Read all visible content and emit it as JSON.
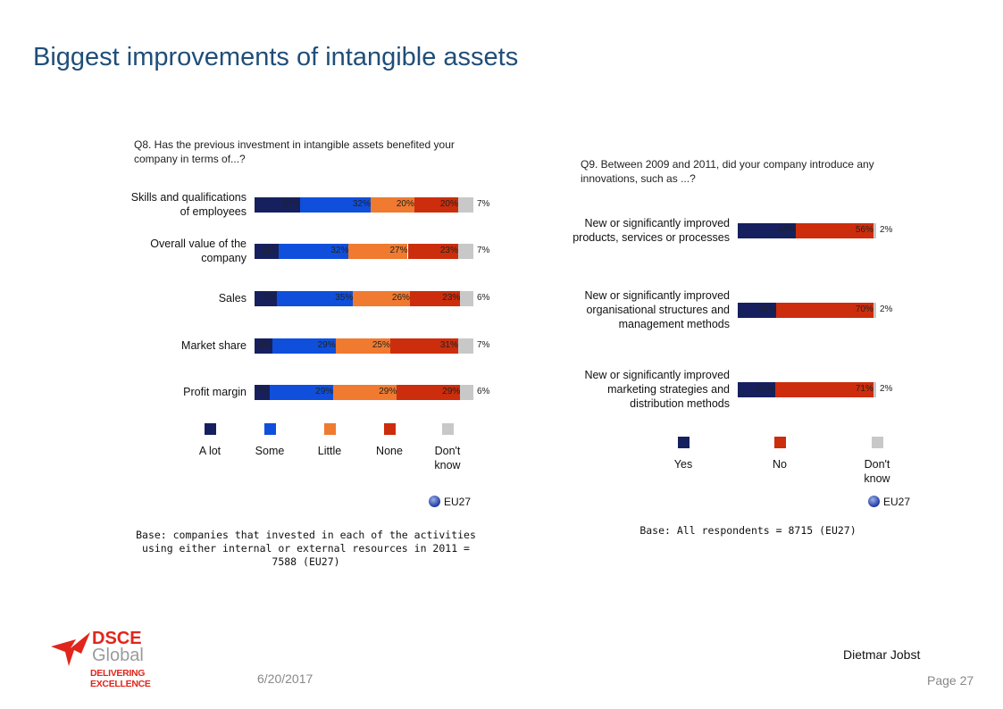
{
  "title": "Biggest improvements of intangible assets",
  "chart_data": [
    {
      "type": "bar",
      "stacked": true,
      "orientation": "horizontal",
      "title": "Q8. Has the previous investment in intangible assets benefited your company in terms of...?",
      "categories": [
        "Skills and qualifications of employees",
        "Overall value of the company",
        "Sales",
        "Market share",
        "Profit margin"
      ],
      "series": [
        {
          "name": "A lot",
          "color": "#16205e",
          "values": [
            21,
            11,
            10,
            8,
            7
          ]
        },
        {
          "name": "Some",
          "color": "#0f4fdc",
          "values": [
            32,
            32,
            35,
            29,
            29
          ]
        },
        {
          "name": "Little",
          "color": "#ef7a30",
          "values": [
            20,
            27,
            26,
            25,
            29
          ]
        },
        {
          "name": "None",
          "color": "#cc2d0c",
          "values": [
            20,
            23,
            23,
            31,
            29
          ]
        },
        {
          "name": "Don't know",
          "color": "#c8c8c8",
          "values": [
            7,
            7,
            6,
            7,
            6
          ]
        }
      ],
      "value_suffix": "%",
      "region_label": "EU27",
      "base_note": "Base: companies that invested in each of the activities using either internal or external resources in 2011 = 7588 (EU27)"
    },
    {
      "type": "bar",
      "stacked": true,
      "orientation": "horizontal",
      "title": "Q9. Between 2009 and 2011, did your company introduce any innovations, such as ...?",
      "categories": [
        "New or significantly improved products, services or processes",
        "New or significantly improved organisational structures and management methods",
        "New or significantly improved marketing strategies and distribution methods"
      ],
      "series": [
        {
          "name": "Yes",
          "color": "#16205e",
          "values": [
            42,
            28,
            27
          ]
        },
        {
          "name": "No",
          "color": "#cc2d0c",
          "values": [
            56,
            70,
            71
          ]
        },
        {
          "name": "Don't know",
          "color": "#c8c8c8",
          "values": [
            2,
            2,
            2
          ]
        }
      ],
      "value_suffix": "%",
      "region_label": "EU27",
      "base_note": "Base: All respondents = 8715 (EU27)"
    }
  ],
  "footer": {
    "date": "6/20/2017",
    "author": "Dietmar Jobst",
    "page": "Page  27"
  },
  "logo": {
    "line1": "DSCE",
    "line2": "Global",
    "tagline": "DELIVERING EXCELLENCE",
    "colors": {
      "red": "#e1251b",
      "gray": "#9b9b9b"
    }
  }
}
